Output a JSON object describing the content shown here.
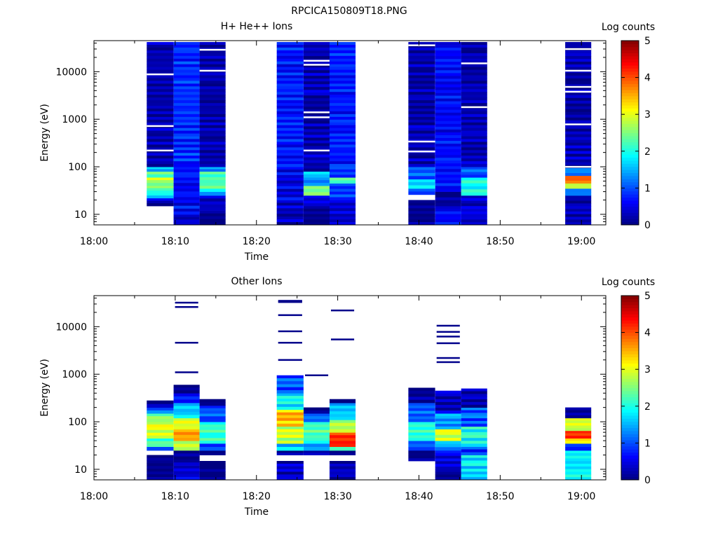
{
  "figure_title": "RPCICA150809T18.PNG",
  "chart_data": [
    {
      "type": "heatmap",
      "title": "H+ He++ Ions",
      "xlabel": "Time",
      "ylabel": "Energy (eV)",
      "y_scale": "log",
      "x_ticks": [
        "18:00",
        "18:10",
        "18:20",
        "18:30",
        "18:40",
        "18:50",
        "19:00"
      ],
      "y_ticks": [
        "10",
        "100",
        "1000",
        "10000"
      ],
      "x_range": [
        "18:00",
        "19:03"
      ],
      "y_range_eV": [
        6,
        45000
      ],
      "colorbar": {
        "label": "Log counts",
        "range": [
          0,
          5
        ],
        "ticks": [
          "0",
          "1",
          "2",
          "3",
          "4",
          "5"
        ]
      },
      "columns": [
        {
          "t_start": "18:06.5",
          "t_end": "18:09.8",
          "e_min": 15,
          "e_max": 42000,
          "bands": [
            {
              "from": 15,
              "to": 22,
              "c": 0.5
            },
            {
              "from": 22,
              "to": 28,
              "c": 1.8
            },
            {
              "from": 28,
              "to": 40,
              "c": 2.5
            },
            {
              "from": 40,
              "to": 60,
              "c": 2.9
            },
            {
              "from": 60,
              "to": 80,
              "c": 2.4
            },
            {
              "from": 80,
              "to": 100,
              "c": 1.6
            },
            {
              "from": 100,
              "to": 42000,
              "c": 0.4
            }
          ],
          "gaps": [
            220,
            720,
            8800
          ]
        },
        {
          "t_start": "18:09.8",
          "t_end": "18:13.0",
          "e_min": 6,
          "e_max": 42000,
          "bands": [
            {
              "from": 6,
              "to": 10,
              "c": 0.5
            },
            {
              "from": 10,
              "to": 40,
              "c": 0.8
            },
            {
              "from": 40,
              "to": 100,
              "c": 0.9
            },
            {
              "from": 100,
              "to": 42000,
              "c": 1.0
            }
          ],
          "gaps": []
        },
        {
          "t_start": "18:13.0",
          "t_end": "18:16.2",
          "e_min": 6,
          "e_max": 42000,
          "bands": [
            {
              "from": 6,
              "to": 12,
              "c": 0.2
            },
            {
              "from": 12,
              "to": 25,
              "c": 0.5
            },
            {
              "from": 25,
              "to": 30,
              "c": 1.3
            },
            {
              "from": 30,
              "to": 80,
              "c": 2.4
            },
            {
              "from": 80,
              "to": 100,
              "c": 1.5
            },
            {
              "from": 100,
              "to": 42000,
              "c": 0.35
            }
          ],
          "gaps": [
            10500,
            29000
          ]
        },
        {
          "t_start": "18:22.5",
          "t_end": "18:25.8",
          "e_min": 6,
          "e_max": 42000,
          "bands": [
            {
              "from": 6,
              "to": 20,
              "c": 0.5
            },
            {
              "from": 20,
              "to": 100,
              "c": 0.7
            },
            {
              "from": 100,
              "to": 42000,
              "c": 0.9
            }
          ],
          "gaps": []
        },
        {
          "t_start": "18:25.8",
          "t_end": "18:29.0",
          "e_min": 6,
          "e_max": 42000,
          "bands": [
            {
              "from": 6,
              "to": 15,
              "c": 0.2
            },
            {
              "from": 15,
              "to": 25,
              "c": 0.6
            },
            {
              "from": 25,
              "to": 40,
              "c": 2.6
            },
            {
              "from": 40,
              "to": 60,
              "c": 1.4
            },
            {
              "from": 60,
              "to": 80,
              "c": 1.8
            },
            {
              "from": 80,
              "to": 42000,
              "c": 0.4
            }
          ],
          "gaps": [
            220,
            1100,
            1400,
            14000,
            17000
          ]
        },
        {
          "t_start": "18:29.0",
          "t_end": "18:32.2",
          "e_min": 6,
          "e_max": 42000,
          "bands": [
            {
              "from": 6,
              "to": 20,
              "c": 0.5
            },
            {
              "from": 20,
              "to": 45,
              "c": 1.0
            },
            {
              "from": 45,
              "to": 60,
              "c": 2.4
            },
            {
              "from": 60,
              "to": 100,
              "c": 1.0
            },
            {
              "from": 100,
              "to": 42000,
              "c": 0.9
            }
          ],
          "gaps": []
        },
        {
          "t_start": "18:38.7",
          "t_end": "18:42.0",
          "e_min": 6,
          "e_max": 42000,
          "bands": [
            {
              "from": 6,
              "to": 20,
              "c": 0.2
            },
            {
              "from": 26,
              "to": 35,
              "c": 1.2
            },
            {
              "from": 35,
              "to": 55,
              "c": 1.9
            },
            {
              "from": 55,
              "to": 100,
              "c": 1.3
            },
            {
              "from": 100,
              "to": 42000,
              "c": 0.4
            }
          ],
          "gaps": [
            22,
            210,
            340,
            36000
          ]
        },
        {
          "t_start": "18:42.0",
          "t_end": "18:45.2",
          "e_min": 6,
          "e_max": 42000,
          "bands": [
            {
              "from": 6,
              "to": 15,
              "c": 0.8
            },
            {
              "from": 15,
              "to": 30,
              "c": 0.3
            },
            {
              "from": 30,
              "to": 42000,
              "c": 0.8
            }
          ],
          "gaps": []
        },
        {
          "t_start": "18:45.2",
          "t_end": "18:48.4",
          "e_min": 6,
          "e_max": 42000,
          "bands": [
            {
              "from": 6,
              "to": 25,
              "c": 0.6
            },
            {
              "from": 25,
              "to": 60,
              "c": 2.2
            },
            {
              "from": 60,
              "to": 100,
              "c": 1.3
            },
            {
              "from": 100,
              "to": 42000,
              "c": 0.4
            }
          ],
          "gaps": [
            1800,
            15000
          ]
        },
        {
          "t_start": "18:58.0",
          "t_end": "19:01.2",
          "e_min": 6,
          "e_max": 42000,
          "bands": [
            {
              "from": 6,
              "to": 25,
              "c": 0.4
            },
            {
              "from": 25,
              "to": 35,
              "c": 1.4
            },
            {
              "from": 35,
              "to": 45,
              "c": 3.0
            },
            {
              "from": 45,
              "to": 65,
              "c": 4.1
            },
            {
              "from": 65,
              "to": 95,
              "c": 1.5
            },
            {
              "from": 95,
              "to": 42000,
              "c": 0.4
            }
          ],
          "gaps": [
            100,
            780,
            3800,
            4800,
            10500,
            30000
          ]
        }
      ]
    },
    {
      "type": "heatmap",
      "title": "Other Ions",
      "xlabel": "Time",
      "ylabel": "Energy (eV)",
      "y_scale": "log",
      "x_ticks": [
        "18:00",
        "18:10",
        "18:20",
        "18:30",
        "18:40",
        "18:50",
        "19:00"
      ],
      "y_ticks": [
        "10",
        "100",
        "1000",
        "10000"
      ],
      "x_range": [
        "18:00",
        "19:03"
      ],
      "y_range_eV": [
        6,
        45000
      ],
      "colorbar": {
        "label": "Log counts",
        "range": [
          0,
          5
        ],
        "ticks": [
          "0",
          "1",
          "2",
          "3",
          "4",
          "5"
        ]
      },
      "columns": [
        {
          "t_start": "18:06.5",
          "t_end": "18:09.8",
          "e_min": 6,
          "e_max": 280,
          "bands": [
            {
              "from": 6,
              "to": 20,
              "c": 0.1
            },
            {
              "from": 25,
              "to": 30,
              "c": 1.3
            },
            {
              "from": 30,
              "to": 45,
              "c": 2.3
            },
            {
              "from": 45,
              "to": 100,
              "c": 3.1
            },
            {
              "from": 100,
              "to": 150,
              "c": 2.6
            },
            {
              "from": 150,
              "to": 200,
              "c": 1.3
            },
            {
              "from": 200,
              "to": 280,
              "c": 0.3
            }
          ],
          "lines": []
        },
        {
          "t_start": "18:09.8",
          "t_end": "18:13.0",
          "e_min": 6,
          "e_max": 600,
          "bands": [
            {
              "from": 6,
              "to": 12,
              "c": 0.6
            },
            {
              "from": 12,
              "to": 25,
              "c": 0.3
            },
            {
              "from": 25,
              "to": 40,
              "c": 3.0
            },
            {
              "from": 40,
              "to": 70,
              "c": 3.8
            },
            {
              "from": 70,
              "to": 120,
              "c": 3.2
            },
            {
              "from": 120,
              "to": 250,
              "c": 1.8
            },
            {
              "from": 250,
              "to": 400,
              "c": 0.9
            },
            {
              "from": 400,
              "to": 600,
              "c": 0.2
            }
          ],
          "lines": [
            1100,
            4600,
            26000,
            32000
          ]
        },
        {
          "t_start": "18:13.0",
          "t_end": "18:16.2",
          "e_min": 6,
          "e_max": 300,
          "bands": [
            {
              "from": 6,
              "to": 15,
              "c": 0.1
            },
            {
              "from": 20,
              "to": 25,
              "c": 0.2
            },
            {
              "from": 25,
              "to": 35,
              "c": 1.2
            },
            {
              "from": 35,
              "to": 100,
              "c": 2.3
            },
            {
              "from": 100,
              "to": 220,
              "c": 1.2
            },
            {
              "from": 220,
              "to": 300,
              "c": 0.2
            }
          ],
          "lines": []
        },
        {
          "t_start": "18:22.5",
          "t_end": "18:25.8",
          "e_min": 6,
          "e_max": 950,
          "bands": [
            {
              "from": 6,
              "to": 15,
              "c": 0.5
            },
            {
              "from": 20,
              "to": 25,
              "c": 0.2
            },
            {
              "from": 25,
              "to": 35,
              "c": 1.8
            },
            {
              "from": 35,
              "to": 80,
              "c": 3.0
            },
            {
              "from": 80,
              "to": 180,
              "c": 3.6
            },
            {
              "from": 180,
              "to": 400,
              "c": 2.0
            },
            {
              "from": 400,
              "to": 950,
              "c": 1.2
            }
          ],
          "lines": [
            2000,
            4600,
            8000,
            17500,
            33000,
            35000
          ]
        },
        {
          "t_start": "18:25.8",
          "t_end": "18:29.0",
          "e_min": 20,
          "e_max": 200,
          "bands": [
            {
              "from": 20,
              "to": 25,
              "c": 0.5
            },
            {
              "from": 25,
              "to": 35,
              "c": 1.6
            },
            {
              "from": 35,
              "to": 100,
              "c": 2.4
            },
            {
              "from": 100,
              "to": 150,
              "c": 1.4
            },
            {
              "from": 150,
              "to": 200,
              "c": 0.3
            }
          ],
          "lines": [
            950
          ]
        },
        {
          "t_start": "18:29.0",
          "t_end": "18:32.2",
          "e_min": 6,
          "e_max": 300,
          "bands": [
            {
              "from": 6,
              "to": 15,
              "c": 0.5
            },
            {
              "from": 20,
              "to": 25,
              "c": 0.2
            },
            {
              "from": 25,
              "to": 30,
              "c": 2.7
            },
            {
              "from": 30,
              "to": 60,
              "c": 4.4
            },
            {
              "from": 60,
              "to": 110,
              "c": 3.0
            },
            {
              "from": 110,
              "to": 250,
              "c": 1.8
            },
            {
              "from": 250,
              "to": 300,
              "c": 0.4
            }
          ],
          "lines": [
            5400,
            22000
          ]
        },
        {
          "t_start": "18:38.7",
          "t_end": "18:42.0",
          "e_min": 15,
          "e_max": 520,
          "bands": [
            {
              "from": 15,
              "to": 25,
              "c": 0.2
            },
            {
              "from": 25,
              "to": 40,
              "c": 1.3
            },
            {
              "from": 40,
              "to": 100,
              "c": 2.3
            },
            {
              "from": 100,
              "to": 250,
              "c": 1.3
            },
            {
              "from": 250,
              "to": 520,
              "c": 0.3
            }
          ],
          "lines": []
        },
        {
          "t_start": "18:42.0",
          "t_end": "18:45.2",
          "e_min": 6,
          "e_max": 450,
          "bands": [
            {
              "from": 6,
              "to": 10,
              "c": 0.2
            },
            {
              "from": 10,
              "to": 25,
              "c": 0.7
            },
            {
              "from": 25,
              "to": 40,
              "c": 1.6
            },
            {
              "from": 40,
              "to": 70,
              "c": 3.1
            },
            {
              "from": 70,
              "to": 150,
              "c": 1.6
            },
            {
              "from": 150,
              "to": 450,
              "c": 0.5
            }
          ],
          "lines": [
            1800,
            2200,
            4500,
            6200,
            7800,
            10500
          ]
        },
        {
          "t_start": "18:45.2",
          "t_end": "18:48.4",
          "e_min": 6,
          "e_max": 500,
          "bands": [
            {
              "from": 6,
              "to": 20,
              "c": 1.9
            },
            {
              "from": 20,
              "to": 30,
              "c": 1.0
            },
            {
              "from": 30,
              "to": 80,
              "c": 2.1
            },
            {
              "from": 80,
              "to": 200,
              "c": 1.2
            },
            {
              "from": 200,
              "to": 500,
              "c": 0.3
            }
          ],
          "lines": []
        },
        {
          "t_start": "18:58.0",
          "t_end": "19:01.2",
          "e_min": 6,
          "e_max": 200,
          "bands": [
            {
              "from": 6,
              "to": 25,
              "c": 2.0
            },
            {
              "from": 25,
              "to": 35,
              "c": 1.0
            },
            {
              "from": 35,
              "to": 45,
              "c": 3.4
            },
            {
              "from": 45,
              "to": 65,
              "c": 4.3
            },
            {
              "from": 65,
              "to": 120,
              "c": 3.1
            },
            {
              "from": 120,
              "to": 200,
              "c": 0.3
            }
          ],
          "lines": []
        }
      ]
    }
  ]
}
